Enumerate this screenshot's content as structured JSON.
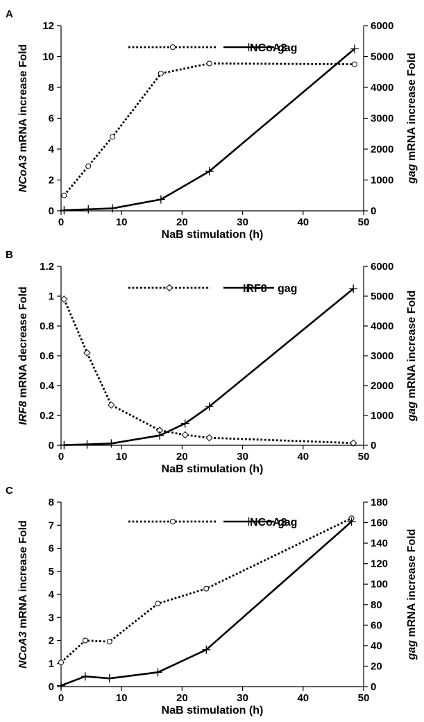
{
  "chart_data": [
    {
      "panel": "A",
      "type": "line",
      "xlabel": "NaB stimulation (h)",
      "xlim": [
        0,
        50
      ],
      "xticks": [
        0,
        10,
        20,
        30,
        40,
        50
      ],
      "ylabel_left": {
        "italic": "NCoA3",
        "rest": " mRNA increase Fold"
      },
      "ylim_left": [
        0,
        12
      ],
      "yticks_left": [
        0,
        2,
        4,
        6,
        8,
        10,
        12
      ],
      "ylabel_right": {
        "italic": "gag",
        "rest": " mRNA increase Fold"
      },
      "ylim_right": [
        0,
        6000
      ],
      "yticks_right": [
        0,
        1000,
        2000,
        3000,
        4000,
        5000,
        6000
      ],
      "series": [
        {
          "name": "NCoA3",
          "axis": "left",
          "style": "dotted",
          "marker": "circle",
          "x": [
            0.5,
            4.5,
            8.5,
            16.5,
            24.5,
            48.5
          ],
          "y": [
            1.0,
            2.9,
            4.8,
            8.9,
            9.55,
            9.5
          ]
        },
        {
          "name": "gag",
          "axis": "right",
          "style": "solid",
          "marker": "plus",
          "x": [
            0.5,
            4.5,
            8.5,
            16.5,
            24.5,
            48.5
          ],
          "y": [
            20,
            50,
            80,
            370,
            1280,
            5250
          ]
        }
      ]
    },
    {
      "panel": "B",
      "type": "line",
      "xlabel": "NaB stimulation (h)",
      "xlim": [
        0,
        50
      ],
      "xticks": [
        0,
        10,
        20,
        30,
        40,
        50
      ],
      "ylabel_left": {
        "italic": "IRF8",
        "rest": " mRNA decrease Fold"
      },
      "ylim_left": [
        0,
        1.2
      ],
      "yticks_left": [
        0,
        0.2,
        0.4,
        0.6,
        0.8,
        1,
        1.2
      ],
      "ylabel_right": {
        "italic": "gag",
        "rest": " mRNA increase Fold"
      },
      "ylim_right": [
        0,
        6000
      ],
      "yticks_right": [
        0,
        1000,
        2000,
        3000,
        4000,
        5000,
        6000
      ],
      "series": [
        {
          "name": "IRF8",
          "axis": "left",
          "style": "dotted",
          "marker": "diamond",
          "x": [
            0.5,
            4.3,
            8.3,
            16.3,
            20.5,
            24.5,
            48.3
          ],
          "y": [
            0.98,
            0.62,
            0.27,
            0.1,
            0.07,
            0.05,
            0.015
          ]
        },
        {
          "name": "gag",
          "axis": "right",
          "style": "solid",
          "marker": "plus",
          "x": [
            0.5,
            4.3,
            8.3,
            16.3,
            20.5,
            24.5,
            48.3
          ],
          "y": [
            10,
            30,
            60,
            330,
            730,
            1300,
            5250
          ]
        }
      ]
    },
    {
      "panel": "C",
      "type": "line",
      "xlabel": "NaB stimulation (h)",
      "xlim": [
        0,
        50
      ],
      "xticks": [
        0,
        10,
        20,
        30,
        40,
        50
      ],
      "ylabel_left": {
        "italic": "NCoA3",
        "rest": " mRNA increase Fold"
      },
      "ylim_left": [
        0,
        8
      ],
      "yticks_left": [
        0,
        1,
        2,
        3,
        4,
        5,
        6,
        7,
        8
      ],
      "ylabel_right": {
        "italic": "gag",
        "rest": " mRNA increase Fold"
      },
      "ylim_right": [
        0,
        180
      ],
      "yticks_right": [
        0,
        20,
        40,
        60,
        80,
        100,
        120,
        140,
        160,
        180
      ],
      "series": [
        {
          "name": "NCoA3",
          "axis": "left",
          "style": "dotted",
          "marker": "circle",
          "x": [
            0,
            4,
            8,
            16,
            24,
            48
          ],
          "y": [
            1.05,
            2.0,
            1.95,
            3.6,
            4.25,
            7.3
          ]
        },
        {
          "name": "gag",
          "axis": "right",
          "style": "solid",
          "marker": "plus",
          "x": [
            0,
            4,
            8,
            16,
            24,
            48
          ],
          "y": [
            1,
            10,
            8,
            14,
            36,
            161
          ]
        }
      ]
    }
  ]
}
